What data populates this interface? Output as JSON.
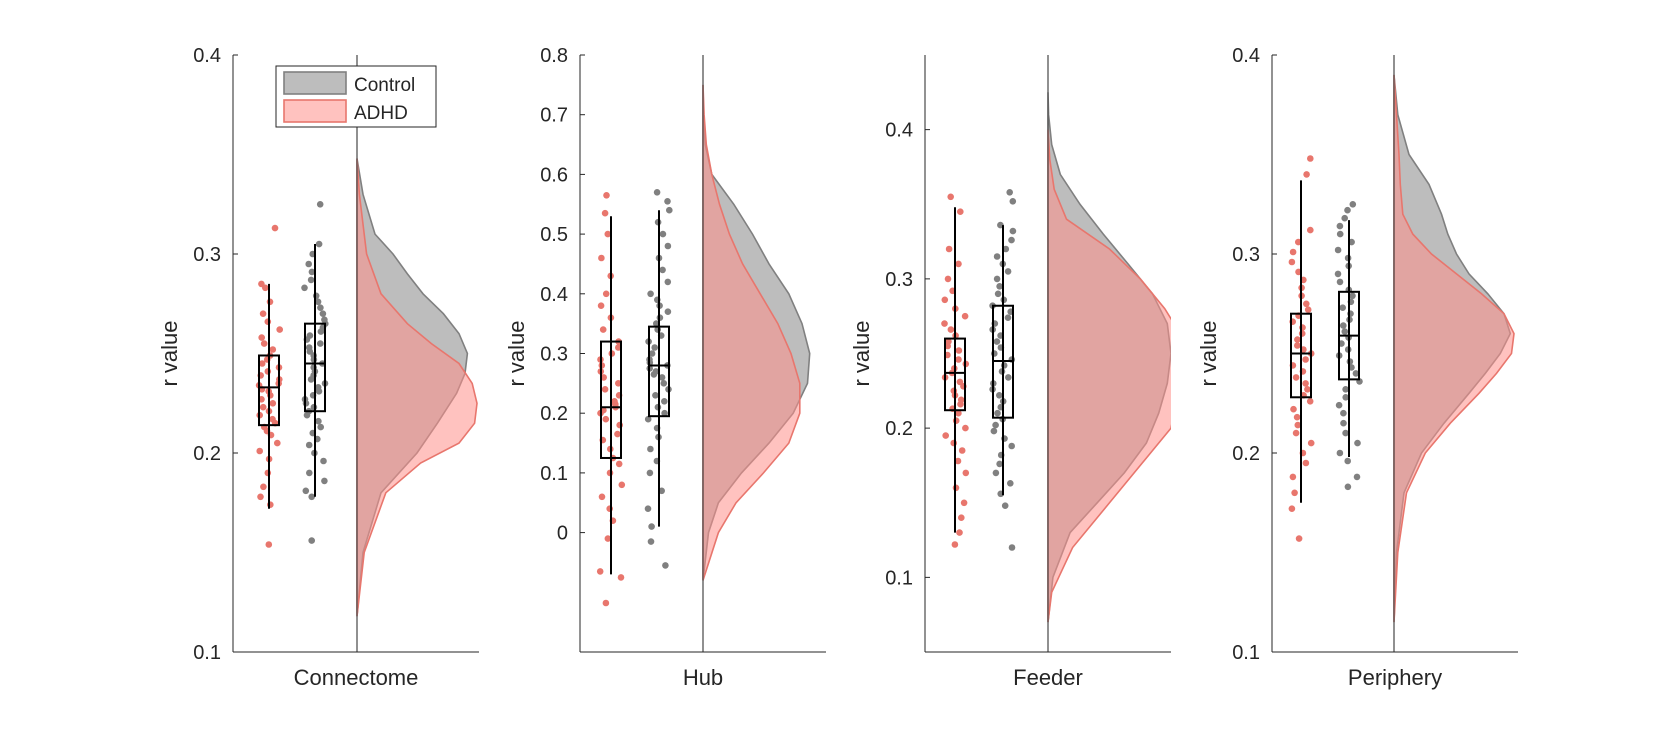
{
  "colors": {
    "control": "#808080",
    "control_fill": "#9a9a9a",
    "adhd": "#e8766d",
    "adhd_fill": "#ff8f8a",
    "axis": "#262626"
  },
  "legend": {
    "entries": [
      "Control",
      "ADHD"
    ],
    "placement": "top-right of first panel"
  },
  "chart_data": [
    {
      "type": "raincloud",
      "xlabel": "Connectome",
      "ylabel": "r value",
      "ylim": [
        0.1,
        0.4
      ],
      "yticks": [
        0.1,
        0.2,
        0.3,
        0.4
      ],
      "ytick_labels": [
        "0.1",
        "0.2",
        "0.3",
        "0.4"
      ],
      "boxes": [
        {
          "series": "ADHD",
          "min": 0.172,
          "q1": 0.214,
          "median": 0.233,
          "q3": 0.249,
          "max": 0.285
        },
        {
          "series": "Control",
          "min": 0.178,
          "q1": 0.221,
          "median": 0.245,
          "q3": 0.265,
          "max": 0.305
        }
      ],
      "points": [
        {
          "series": "ADHD",
          "values": [
            0.154,
            0.174,
            0.178,
            0.183,
            0.19,
            0.197,
            0.201,
            0.205,
            0.209,
            0.211,
            0.213,
            0.215,
            0.217,
            0.219,
            0.221,
            0.223,
            0.225,
            0.227,
            0.229,
            0.231,
            0.232,
            0.234,
            0.235,
            0.237,
            0.239,
            0.241,
            0.243,
            0.245,
            0.247,
            0.249,
            0.252,
            0.255,
            0.258,
            0.262,
            0.266,
            0.27,
            0.276,
            0.283,
            0.285,
            0.313
          ]
        },
        {
          "series": "Control",
          "values": [
            0.156,
            0.178,
            0.181,
            0.186,
            0.19,
            0.196,
            0.2,
            0.204,
            0.207,
            0.21,
            0.213,
            0.216,
            0.219,
            0.221,
            0.223,
            0.225,
            0.227,
            0.229,
            0.231,
            0.233,
            0.235,
            0.237,
            0.239,
            0.241,
            0.243,
            0.245,
            0.247,
            0.249,
            0.251,
            0.253,
            0.255,
            0.257,
            0.259,
            0.261,
            0.263,
            0.265,
            0.267,
            0.27,
            0.273,
            0.276,
            0.279,
            0.283,
            0.287,
            0.291,
            0.295,
            0.3,
            0.305,
            0.325
          ]
        }
      ],
      "densities": [
        {
          "series": "Control",
          "y": [
            0.118,
            0.15,
            0.18,
            0.2,
            0.215,
            0.23,
            0.24,
            0.25,
            0.26,
            0.27,
            0.28,
            0.29,
            0.3,
            0.31,
            0.33,
            0.348
          ],
          "density": [
            0,
            0.05,
            0.2,
            0.5,
            0.67,
            0.83,
            0.9,
            0.92,
            0.85,
            0.72,
            0.55,
            0.42,
            0.3,
            0.15,
            0.05,
            0
          ]
        },
        {
          "series": "ADHD",
          "y": [
            0.118,
            0.15,
            0.18,
            0.195,
            0.205,
            0.215,
            0.225,
            0.235,
            0.245,
            0.255,
            0.265,
            0.28,
            0.3,
            0.33,
            0.348
          ],
          "density": [
            0,
            0.06,
            0.24,
            0.53,
            0.85,
            0.98,
            1.0,
            0.96,
            0.85,
            0.62,
            0.42,
            0.2,
            0.08,
            0.02,
            0
          ]
        }
      ]
    },
    {
      "type": "raincloud",
      "xlabel": "Hub",
      "ylabel": "r value",
      "ylim": [
        -0.2,
        0.8
      ],
      "yticks": [
        0,
        0.1,
        0.2,
        0.3,
        0.4,
        0.5,
        0.6,
        0.7,
        0.8
      ],
      "ytick_labels": [
        "0",
        "0.1",
        "0.2",
        "0.3",
        "0.4",
        "0.5",
        "0.6",
        "0.7",
        "0.8"
      ],
      "boxes": [
        {
          "series": "ADHD",
          "min": -0.07,
          "q1": 0.125,
          "median": 0.21,
          "q3": 0.32,
          "max": 0.53
        },
        {
          "series": "Control",
          "min": 0.01,
          "q1": 0.195,
          "median": 0.28,
          "q3": 0.345,
          "max": 0.54
        }
      ],
      "points": [
        {
          "series": "ADHD",
          "values": [
            -0.118,
            -0.075,
            -0.065,
            -0.01,
            0.02,
            0.04,
            0.06,
            0.08,
            0.1,
            0.115,
            0.125,
            0.14,
            0.155,
            0.165,
            0.18,
            0.19,
            0.2,
            0.205,
            0.21,
            0.215,
            0.22,
            0.23,
            0.24,
            0.25,
            0.26,
            0.27,
            0.28,
            0.29,
            0.3,
            0.31,
            0.32,
            0.34,
            0.36,
            0.38,
            0.4,
            0.43,
            0.46,
            0.5,
            0.535,
            0.565
          ]
        },
        {
          "series": "Control",
          "values": [
            -0.055,
            -0.015,
            0.01,
            0.04,
            0.07,
            0.1,
            0.12,
            0.14,
            0.16,
            0.175,
            0.19,
            0.2,
            0.21,
            0.22,
            0.23,
            0.24,
            0.25,
            0.26,
            0.265,
            0.27,
            0.275,
            0.28,
            0.285,
            0.29,
            0.3,
            0.31,
            0.32,
            0.33,
            0.34,
            0.35,
            0.36,
            0.37,
            0.38,
            0.39,
            0.4,
            0.42,
            0.44,
            0.46,
            0.48,
            0.5,
            0.52,
            0.54,
            0.555,
            0.57
          ]
        }
      ],
      "densities": [
        {
          "series": "Control",
          "y": [
            -0.08,
            0,
            0.05,
            0.1,
            0.15,
            0.2,
            0.25,
            0.3,
            0.35,
            0.4,
            0.45,
            0.5,
            0.55,
            0.6,
            0.65,
            0.7,
            0.75
          ],
          "density": [
            0,
            0.05,
            0.14,
            0.35,
            0.6,
            0.82,
            0.95,
            0.97,
            0.9,
            0.78,
            0.6,
            0.45,
            0.28,
            0.08,
            0.02,
            0.005,
            0
          ]
        },
        {
          "series": "ADHD",
          "y": [
            -0.08,
            0,
            0.05,
            0.1,
            0.15,
            0.2,
            0.25,
            0.3,
            0.35,
            0.4,
            0.45,
            0.5,
            0.55,
            0.6,
            0.65,
            0.7,
            0.75
          ],
          "density": [
            0,
            0.14,
            0.3,
            0.55,
            0.78,
            0.88,
            0.88,
            0.8,
            0.68,
            0.52,
            0.36,
            0.24,
            0.15,
            0.08,
            0.03,
            0.01,
            0
          ]
        }
      ]
    },
    {
      "type": "raincloud",
      "xlabel": "Feeder",
      "ylabel": "r value",
      "ylim": [
        0.05,
        0.45
      ],
      "yticks": [
        0.1,
        0.2,
        0.3,
        0.4
      ],
      "ytick_labels": [
        "0.1",
        "0.2",
        "0.3",
        "0.4"
      ],
      "boxes": [
        {
          "series": "ADHD",
          "min": 0.13,
          "q1": 0.212,
          "median": 0.237,
          "q3": 0.26,
          "max": 0.348
        },
        {
          "series": "Control",
          "min": 0.155,
          "q1": 0.207,
          "median": 0.245,
          "q3": 0.282,
          "max": 0.336
        }
      ],
      "points": [
        {
          "series": "ADHD",
          "values": [
            0.122,
            0.13,
            0.14,
            0.15,
            0.16,
            0.17,
            0.178,
            0.185,
            0.19,
            0.195,
            0.2,
            0.205,
            0.21,
            0.213,
            0.216,
            0.219,
            0.222,
            0.225,
            0.228,
            0.231,
            0.234,
            0.237,
            0.24,
            0.243,
            0.246,
            0.249,
            0.252,
            0.255,
            0.258,
            0.262,
            0.266,
            0.27,
            0.275,
            0.28,
            0.286,
            0.292,
            0.3,
            0.31,
            0.32,
            0.345,
            0.355
          ]
        },
        {
          "series": "Control",
          "values": [
            0.12,
            0.148,
            0.156,
            0.163,
            0.17,
            0.176,
            0.182,
            0.188,
            0.193,
            0.198,
            0.202,
            0.206,
            0.21,
            0.214,
            0.218,
            0.222,
            0.226,
            0.23,
            0.234,
            0.238,
            0.242,
            0.246,
            0.25,
            0.254,
            0.258,
            0.262,
            0.266,
            0.27,
            0.274,
            0.278,
            0.282,
            0.286,
            0.29,
            0.295,
            0.3,
            0.305,
            0.31,
            0.315,
            0.32,
            0.326,
            0.332,
            0.336,
            0.352,
            0.358
          ]
        }
      ],
      "densities": [
        {
          "series": "Control",
          "y": [
            0.07,
            0.1,
            0.13,
            0.15,
            0.17,
            0.19,
            0.21,
            0.23,
            0.25,
            0.27,
            0.29,
            0.31,
            0.33,
            0.35,
            0.37,
            0.39,
            0.41,
            0.425
          ],
          "density": [
            0,
            0.04,
            0.18,
            0.4,
            0.62,
            0.8,
            0.9,
            0.97,
            1.0,
            0.97,
            0.85,
            0.65,
            0.45,
            0.26,
            0.1,
            0.03,
            0.005,
            0
          ]
        },
        {
          "series": "ADHD",
          "y": [
            0.07,
            0.09,
            0.12,
            0.15,
            0.18,
            0.2,
            0.22,
            0.24,
            0.26,
            0.28,
            0.3,
            0.32,
            0.34,
            0.36,
            0.38,
            0.4
          ],
          "density": [
            0,
            0.03,
            0.2,
            0.5,
            0.8,
            1.0,
            1.05,
            1.08,
            1.1,
            0.95,
            0.75,
            0.5,
            0.15,
            0.05,
            0.015,
            0
          ]
        }
      ]
    },
    {
      "type": "raincloud",
      "xlabel": "Periphery",
      "ylabel": "r value",
      "ylim": [
        0.1,
        0.4
      ],
      "yticks": [
        0.1,
        0.2,
        0.3,
        0.4
      ],
      "ytick_labels": [
        "0.1",
        "0.2",
        "0.3",
        "0.4"
      ],
      "boxes": [
        {
          "series": "ADHD",
          "min": 0.175,
          "q1": 0.228,
          "median": 0.25,
          "q3": 0.27,
          "max": 0.337
        },
        {
          "series": "Control",
          "min": 0.198,
          "q1": 0.237,
          "median": 0.259,
          "q3": 0.281,
          "max": 0.317
        }
      ],
      "points": [
        {
          "series": "ADHD",
          "values": [
            0.157,
            0.172,
            0.18,
            0.188,
            0.195,
            0.2,
            0.205,
            0.21,
            0.214,
            0.218,
            0.222,
            0.226,
            0.229,
            0.232,
            0.235,
            0.238,
            0.241,
            0.244,
            0.247,
            0.25,
            0.252,
            0.254,
            0.257,
            0.26,
            0.263,
            0.266,
            0.269,
            0.272,
            0.275,
            0.279,
            0.283,
            0.287,
            0.291,
            0.296,
            0.301,
            0.306,
            0.312,
            0.34,
            0.348
          ]
        },
        {
          "series": "Control",
          "values": [
            0.183,
            0.188,
            0.196,
            0.2,
            0.205,
            0.21,
            0.215,
            0.22,
            0.224,
            0.228,
            0.232,
            0.236,
            0.24,
            0.243,
            0.246,
            0.249,
            0.252,
            0.255,
            0.258,
            0.261,
            0.264,
            0.267,
            0.27,
            0.273,
            0.276,
            0.279,
            0.282,
            0.286,
            0.29,
            0.294,
            0.298,
            0.302,
            0.306,
            0.31,
            0.314,
            0.318,
            0.322,
            0.325
          ]
        }
      ],
      "densities": [
        {
          "series": "Control",
          "y": [
            0.115,
            0.15,
            0.18,
            0.2,
            0.215,
            0.23,
            0.24,
            0.25,
            0.26,
            0.27,
            0.28,
            0.29,
            0.3,
            0.31,
            0.32,
            0.335,
            0.35,
            0.37,
            0.39
          ],
          "density": [
            0,
            0.02,
            0.08,
            0.22,
            0.4,
            0.6,
            0.73,
            0.85,
            0.93,
            0.88,
            0.75,
            0.6,
            0.5,
            0.43,
            0.38,
            0.28,
            0.12,
            0.03,
            0
          ]
        },
        {
          "series": "ADHD",
          "y": [
            0.115,
            0.15,
            0.18,
            0.2,
            0.215,
            0.23,
            0.24,
            0.25,
            0.26,
            0.27,
            0.28,
            0.29,
            0.3,
            0.31,
            0.32,
            0.335,
            0.35,
            0.37,
            0.39
          ],
          "density": [
            0,
            0.03,
            0.1,
            0.25,
            0.45,
            0.68,
            0.82,
            0.94,
            0.96,
            0.88,
            0.7,
            0.5,
            0.3,
            0.15,
            0.07,
            0.05,
            0.04,
            0.02,
            0
          ]
        }
      ]
    }
  ]
}
